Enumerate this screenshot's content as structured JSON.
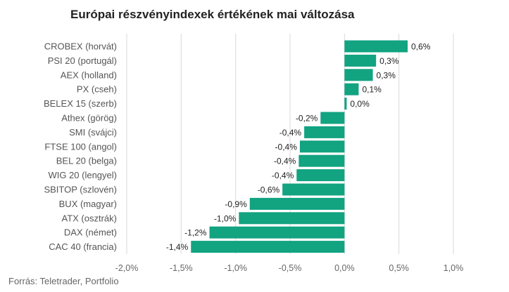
{
  "chart_data": {
    "type": "bar",
    "orientation": "horizontal",
    "title": "Európai részvényindexek értékének mai változása",
    "source": "Forrás: Teletrader, Portfolio",
    "bar_color": "#12a381",
    "grid": true,
    "xlim": [
      -2.0,
      1.0
    ],
    "x_ticks": [
      -2.0,
      -1.5,
      -1.0,
      -0.5,
      0.0,
      0.5,
      1.0
    ],
    "x_tick_labels": [
      "-2,0%",
      "-1,5%",
      "-1,0%",
      "-0,5%",
      "0,0%",
      "0,5%",
      "1,0%"
    ],
    "categories": [
      "CROBEX (horvát)",
      "PSI 20 (portugál)",
      "AEX (holland)",
      "PX (cseh)",
      "BELEX 15 (szerb)",
      "Athex (görög)",
      "SMI (svájci)",
      "FTSE 100 (angol)",
      "BEL 20 (belga)",
      "WIG 20 (lengyel)",
      "SBITOP (szlovén)",
      "BUX (magyar)",
      "ATX (osztrák)",
      "DAX (német)",
      "CAC 40 (francia)"
    ],
    "values": [
      0.58,
      0.29,
      0.26,
      0.13,
      0.02,
      -0.22,
      -0.37,
      -0.41,
      -0.42,
      -0.44,
      -0.57,
      -0.87,
      -0.97,
      -1.24,
      -1.41
    ],
    "value_labels": [
      "0,6%",
      "0,3%",
      "0,3%",
      "0,1%",
      "0,0%",
      "-0,2%",
      "-0,4%",
      "-0,4%",
      "-0,4%",
      "-0,4%",
      "-0,6%",
      "-0,9%",
      "-1,0%",
      "-1,2%",
      "-1,4%"
    ]
  }
}
